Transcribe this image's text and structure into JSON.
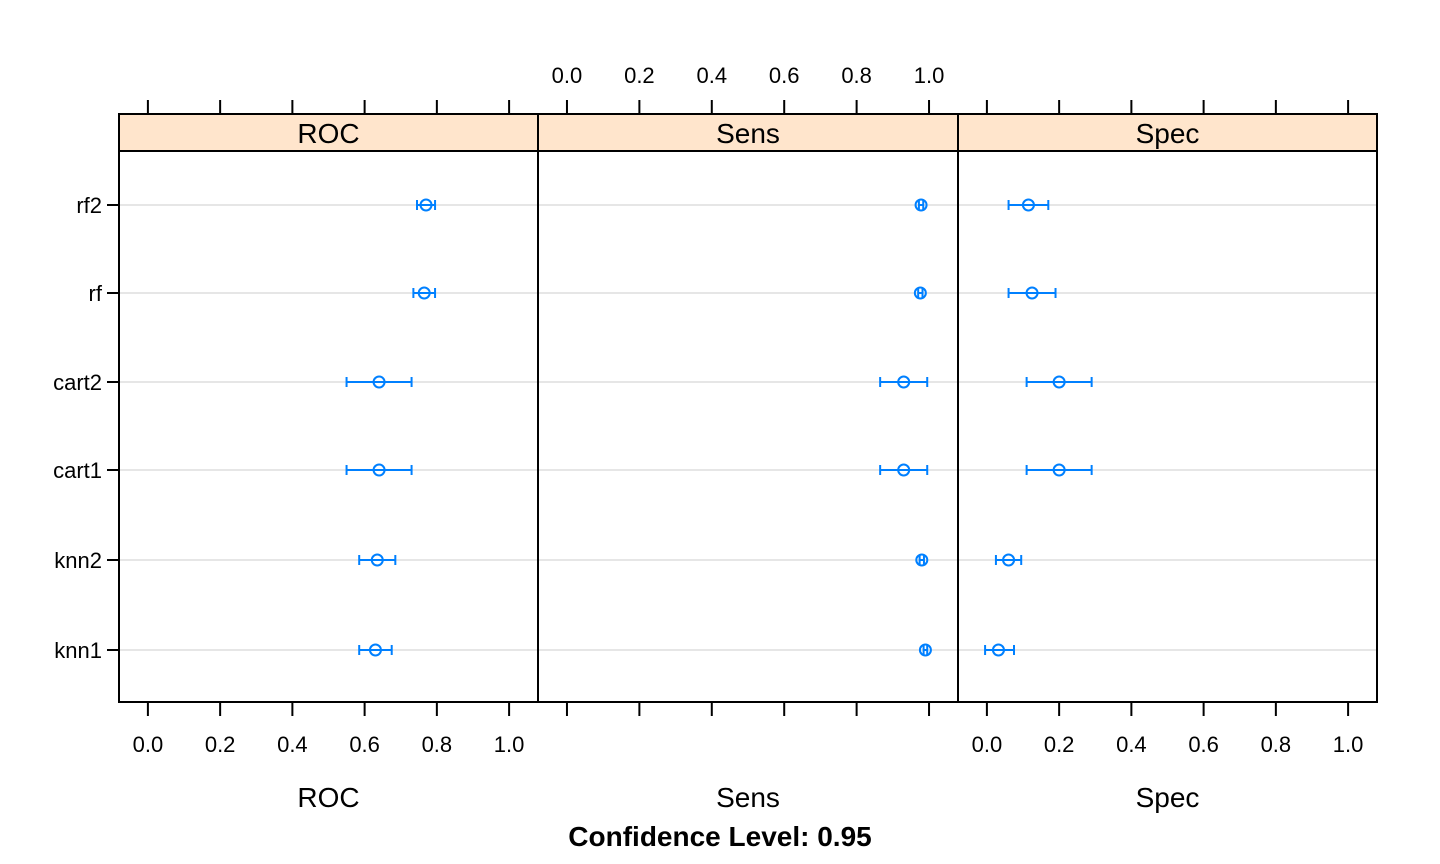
{
  "chart_data": {
    "type": "dotplot",
    "main": "Confidence Level: 0.95",
    "models": [
      "rf2",
      "rf",
      "cart2",
      "cart1",
      "knn2",
      "knn1"
    ],
    "x_ticks": [
      "0.0",
      "0.2",
      "0.4",
      "0.6",
      "0.8",
      "1.0"
    ],
    "xlim": [
      -0.08,
      1.08
    ],
    "colors": {
      "point": "#0080ff",
      "strip": "#ffe5cc",
      "grid": "#e6e6e6",
      "frame": "#000000"
    },
    "panels": [
      {
        "name": "ROC",
        "xlabel": "ROC",
        "axis": "bottom",
        "estimates": [
          {
            "model": "rf2",
            "mean": 0.77,
            "lower": 0.745,
            "upper": 0.795
          },
          {
            "model": "rf",
            "mean": 0.765,
            "lower": 0.735,
            "upper": 0.795
          },
          {
            "model": "cart2",
            "mean": 0.64,
            "lower": 0.55,
            "upper": 0.73
          },
          {
            "model": "cart1",
            "mean": 0.64,
            "lower": 0.55,
            "upper": 0.73
          },
          {
            "model": "knn2",
            "mean": 0.635,
            "lower": 0.585,
            "upper": 0.685
          },
          {
            "model": "knn1",
            "mean": 0.63,
            "lower": 0.585,
            "upper": 0.675
          }
        ]
      },
      {
        "name": "Sens",
        "xlabel": "Sens",
        "axis": "top",
        "estimates": [
          {
            "model": "rf2",
            "mean": 0.978,
            "lower": 0.972,
            "upper": 0.984
          },
          {
            "model": "rf",
            "mean": 0.976,
            "lower": 0.97,
            "upper": 0.982
          },
          {
            "model": "cart2",
            "mean": 0.93,
            "lower": 0.865,
            "upper": 0.995
          },
          {
            "model": "cart1",
            "mean": 0.93,
            "lower": 0.865,
            "upper": 0.995
          },
          {
            "model": "knn2",
            "mean": 0.98,
            "lower": 0.974,
            "upper": 0.986
          },
          {
            "model": "knn1",
            "mean": 0.99,
            "lower": 0.985,
            "upper": 0.995
          }
        ]
      },
      {
        "name": "Spec",
        "xlabel": "Spec",
        "axis": "bottom",
        "estimates": [
          {
            "model": "rf2",
            "mean": 0.115,
            "lower": 0.06,
            "upper": 0.17
          },
          {
            "model": "rf",
            "mean": 0.125,
            "lower": 0.06,
            "upper": 0.19
          },
          {
            "model": "cart2",
            "mean": 0.2,
            "lower": 0.11,
            "upper": 0.29
          },
          {
            "model": "cart1",
            "mean": 0.2,
            "lower": 0.11,
            "upper": 0.29
          },
          {
            "model": "knn2",
            "mean": 0.06,
            "lower": 0.025,
            "upper": 0.095
          },
          {
            "model": "knn1",
            "mean": 0.032,
            "lower": -0.005,
            "upper": 0.075
          }
        ]
      }
    ]
  }
}
